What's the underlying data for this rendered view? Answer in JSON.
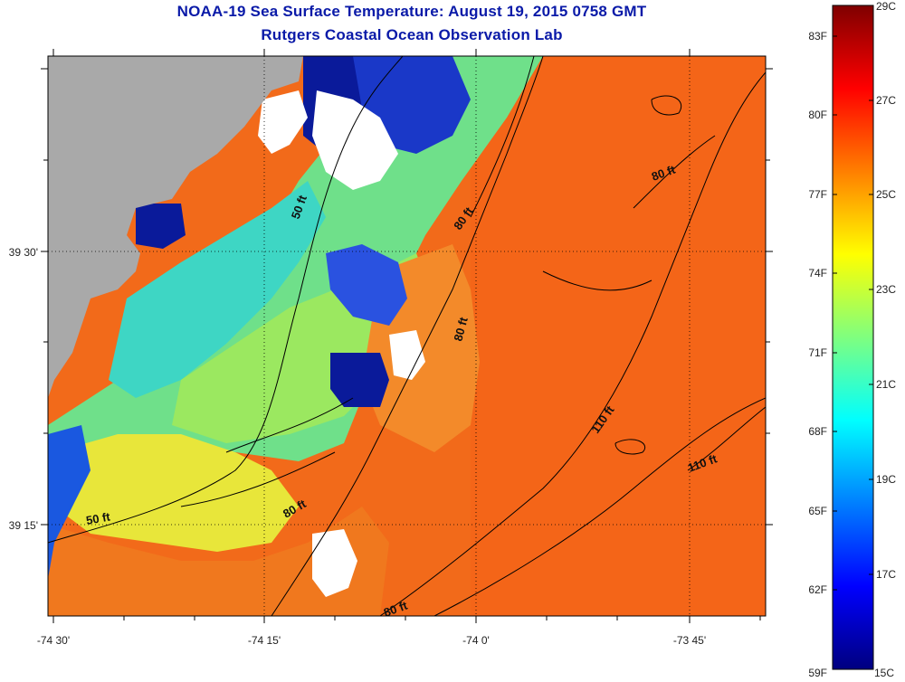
{
  "header": {
    "title": "NOAA-19 Sea Surface Temperature:  August 19, 2015 0758 GMT",
    "subtitle": "Rutgers Coastal Ocean Observation Lab"
  },
  "map": {
    "lon_labels": [
      "-74 30'",
      "-74 15'",
      "-74 0'",
      "-73 45'"
    ],
    "lat_labels": [
      "39 30'",
      "39 15'"
    ],
    "contour_labels": [
      "50 ft",
      "80 ft",
      "80 ft",
      "80 ft",
      "110 ft",
      "110 ft",
      "50 ft",
      "80 ft",
      "80 ft"
    ]
  },
  "colorbar": {
    "fahrenheit_labels": [
      "83F",
      "80F",
      "77F",
      "74F",
      "71F",
      "68F",
      "65F",
      "62F",
      "59F"
    ],
    "celsius_labels": [
      "29C",
      "27C",
      "25C",
      "23C",
      "21C",
      "19C",
      "17C",
      "15C"
    ],
    "colors": [
      "#00007f",
      "#0000ff",
      "#007fff",
      "#00ffff",
      "#7fff7f",
      "#ffff00",
      "#ff7f00",
      "#ff0000",
      "#7f0000"
    ]
  },
  "colors": {
    "land": "#a9a9a9",
    "cloud": "#ffffff",
    "title": "#0a1aa8"
  }
}
